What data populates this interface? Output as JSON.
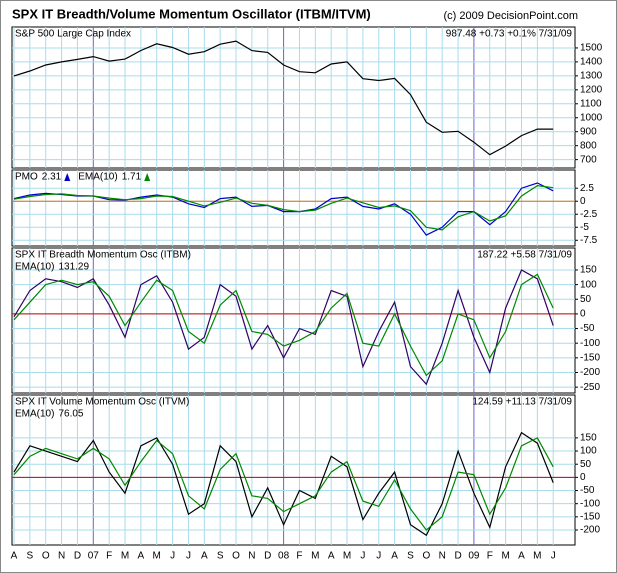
{
  "chart_data": {
    "type": "line",
    "title": "SPX IT Breadth/Volume Momentum Oscillator (ITBM/ITVM)",
    "source": "(c) 2009 DecisionPoint.com",
    "categories": [
      "A",
      "S",
      "O",
      "N",
      "D",
      "07",
      "F",
      "M",
      "A",
      "M",
      "J",
      "J",
      "A",
      "S",
      "O",
      "N",
      "D",
      "08",
      "F",
      "M",
      "A",
      "M",
      "J",
      "J",
      "A",
      "S",
      "O",
      "N",
      "D",
      "09",
      "F",
      "M",
      "A",
      "M",
      "J"
    ],
    "grid": true,
    "panels": [
      {
        "label": "S&P 500 Large Cap Index",
        "readout": "987.48 +0.73 +0.1% 7/31/09",
        "ylim": [
          640,
          1650
        ],
        "yticks": [
          700,
          800,
          900,
          1000,
          1100,
          1200,
          1300,
          1400,
          1500
        ],
        "series": [
          {
            "color": "#000000",
            "values": [
              1300,
              1335,
              1378,
              1400,
              1418,
              1438,
              1406,
              1420,
              1482,
              1530,
              1503,
              1455,
              1473,
              1527,
              1549,
              1481,
              1468,
              1378,
              1330,
              1322,
              1385,
              1400,
              1280,
              1267,
              1282,
              1166,
              968,
              896,
              903,
              825,
              735,
              797,
              872,
              919,
              919
            ]
          }
        ]
      },
      {
        "ylim": [
          -8.6,
          6
        ],
        "yticks": [
          2.5,
          0,
          -2.5,
          -5,
          -7.5
        ],
        "zero_line_color": "#e07000",
        "series": [
          {
            "name": "PMO",
            "last": "2.31",
            "color": "#0000cc",
            "values": [
              0.5,
              1.2,
              1.5,
              1.3,
              1,
              1,
              0.3,
              0.2,
              0.8,
              1.2,
              0.8,
              -0.5,
              -1.2,
              0.5,
              0.8,
              -1,
              -0.8,
              -2,
              -2,
              -1.5,
              0.5,
              0.8,
              -1,
              -1.5,
              -0.5,
              -2.5,
              -6.5,
              -5,
              -2,
              -2,
              -4.5,
              -2,
              2.5,
              3.5,
              2
            ]
          },
          {
            "name": "EMA(10)",
            "last": "1.71",
            "color": "#008800",
            "values": [
              0.4,
              0.9,
              1.3,
              1.4,
              1.1,
              1,
              0.6,
              0.3,
              0.5,
              1,
              0.9,
              0,
              -0.9,
              -0.2,
              0.6,
              -0.4,
              -0.8,
              -1.6,
              -2,
              -1.7,
              -0.4,
              0.6,
              -0.3,
              -1.2,
              -0.9,
              -1.8,
              -5,
              -5.5,
              -3,
              -2,
              -3.8,
              -2.8,
              1,
              3,
              2.6
            ]
          }
        ]
      },
      {
        "label": "SPX IT Breadth Momentum Osc (ITBM)",
        "readout": "187.22 +5.58 7/31/09",
        "ylim": [
          -270,
          225
        ],
        "yticks": [
          150,
          100,
          50,
          0,
          -50,
          -100,
          -150,
          -200,
          -250
        ],
        "zero_line_color": "#cc0000",
        "series": [
          {
            "color": "#330066",
            "values": [
              -10,
              80,
              120,
              110,
              90,
              120,
              30,
              -80,
              100,
              130,
              40,
              -120,
              -80,
              100,
              60,
              -120,
              -40,
              -150,
              -50,
              -70,
              80,
              60,
              -180,
              -60,
              40,
              -180,
              -240,
              -100,
              80,
              -80,
              -200,
              20,
              150,
              120,
              -40
            ]
          },
          {
            "name": "EMA(10)",
            "last": "131.29",
            "color": "#008800",
            "values": [
              -20,
              40,
              100,
              115,
              100,
              110,
              60,
              -40,
              40,
              115,
              80,
              -60,
              -100,
              30,
              80,
              -60,
              -70,
              -110,
              -90,
              -60,
              20,
              70,
              -100,
              -110,
              0,
              -110,
              -210,
              -160,
              0,
              -20,
              -150,
              -60,
              100,
              135,
              20
            ]
          }
        ]
      },
      {
        "label": "SPX IT Volume Momentum Osc (ITVM)",
        "readout": "124.59 +11.13 7/31/09",
        "ylim": [
          -257,
          313
        ],
        "yticks": [
          150,
          100,
          50,
          0,
          -50,
          -100,
          -150,
          -200
        ],
        "zero_line_color": "#cc0000",
        "series": [
          {
            "color": "#000000",
            "values": [
              20,
              120,
              100,
              80,
              60,
              140,
              20,
              -60,
              120,
              150,
              50,
              -140,
              -100,
              120,
              60,
              -150,
              -40,
              -180,
              -50,
              -80,
              80,
              40,
              -160,
              -60,
              20,
              -180,
              -220,
              -100,
              100,
              -60,
              -190,
              40,
              170,
              130,
              -20
            ]
          },
          {
            "name": "EMA(10)",
            "last": "76.05",
            "color": "#008800",
            "values": [
              10,
              80,
              110,
              90,
              70,
              110,
              70,
              -30,
              60,
              140,
              90,
              -70,
              -120,
              30,
              90,
              -70,
              -80,
              -130,
              -100,
              -70,
              20,
              60,
              -90,
              -110,
              -10,
              -120,
              -200,
              -150,
              20,
              10,
              -140,
              -40,
              120,
              150,
              40
            ]
          }
        ]
      }
    ]
  }
}
